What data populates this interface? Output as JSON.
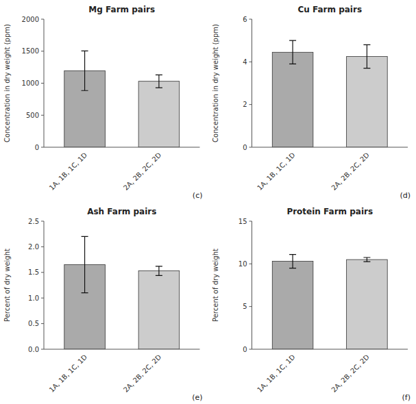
{
  "chart_data": [
    {
      "type": "bar",
      "title": "Mg Farm pairs",
      "ylabel": "Concentration in dry weight (ppm)",
      "categories": [
        "1A, 1B, 1C, 1D",
        "2A, 2B, 2C, 2D"
      ],
      "values": [
        1195,
        1030
      ],
      "errors": [
        310,
        100
      ],
      "colors": [
        "#aaaaaa",
        "#cccccc"
      ],
      "ylim": [
        0,
        2000
      ],
      "yticks": [
        0,
        500,
        1000,
        1500,
        2000
      ],
      "grid": false,
      "annotations": [
        "(c)"
      ]
    },
    {
      "type": "bar",
      "title": "Cu Farm pairs",
      "ylabel": "Concentration in dry weight (ppm)",
      "categories": [
        "1A, 1B, 1C, 1D",
        "2A, 2B, 2C, 2D"
      ],
      "values": [
        4.45,
        4.25
      ],
      "errors": [
        0.55,
        0.55
      ],
      "colors": [
        "#aaaaaa",
        "#cccccc"
      ],
      "ylim": [
        0,
        6
      ],
      "yticks": [
        0,
        2,
        4,
        6
      ],
      "grid": false,
      "annotations": [
        "(d)"
      ]
    },
    {
      "type": "bar",
      "title": "Ash Farm pairs",
      "ylabel": "Percent of dry weight",
      "categories": [
        "1A, 1B, 1C, 1D",
        "2A, 2B, 2C, 2D"
      ],
      "values": [
        1.65,
        1.53
      ],
      "errors": [
        0.55,
        0.09
      ],
      "colors": [
        "#aaaaaa",
        "#cccccc"
      ],
      "ylim": [
        0,
        2.5
      ],
      "yticks": [
        {
          "value": 0,
          "label": "0.0"
        },
        0.5,
        {
          "value": 1,
          "label": "1.0"
        },
        1.5,
        {
          "value": 2,
          "label": "2.0"
        },
        2.5
      ],
      "grid": false,
      "annotations": [
        "(e)"
      ]
    },
    {
      "type": "bar",
      "title": "Protein Farm pairs",
      "ylabel": "Percent of dry weight",
      "categories": [
        "1A, 1B, 1C, 1D",
        "2A, 2B, 2C, 2D"
      ],
      "values": [
        10.3,
        10.5
      ],
      "errors": [
        0.8,
        0.25
      ],
      "colors": [
        "#aaaaaa",
        "#cccccc"
      ],
      "ylim": [
        0,
        15
      ],
      "yticks": [
        0,
        5,
        10,
        15
      ],
      "grid": false,
      "annotations": [
        "(f)"
      ]
    }
  ]
}
